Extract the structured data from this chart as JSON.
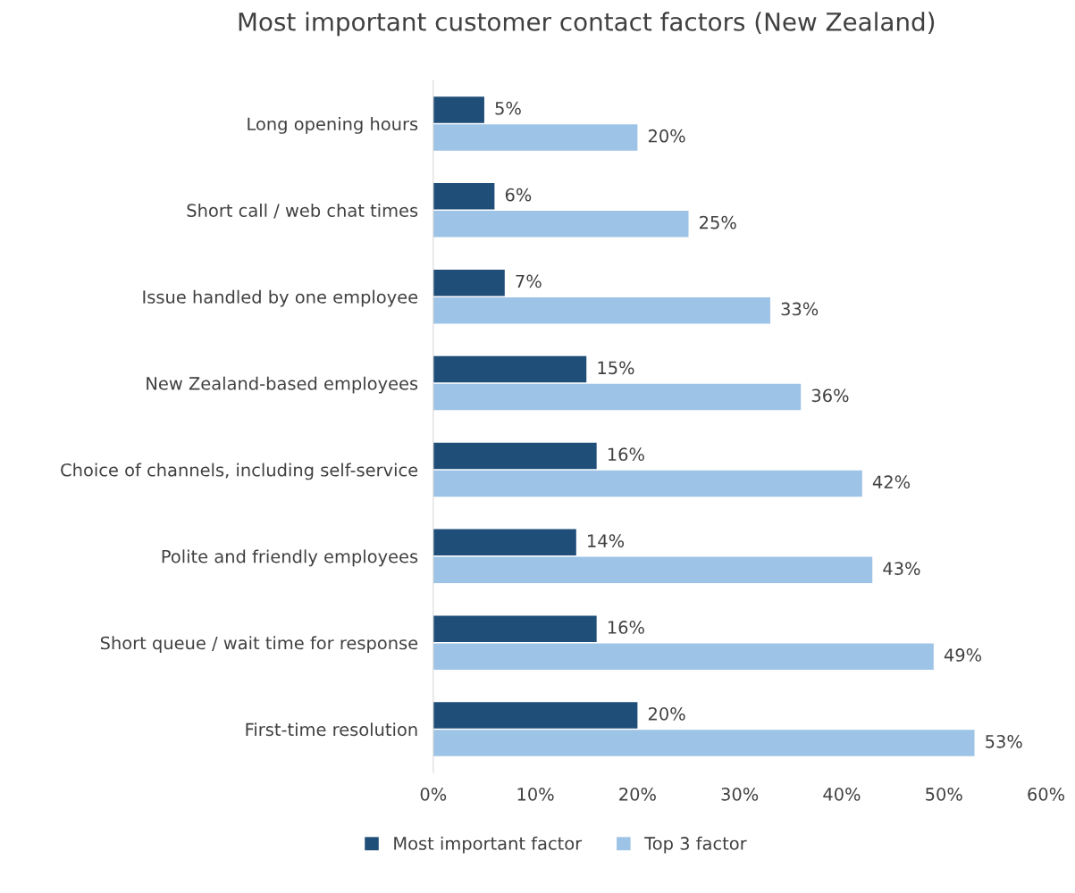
{
  "chart_data": {
    "type": "bar",
    "orientation": "horizontal",
    "title": "Most important customer contact factors (New Zealand)",
    "categories": [
      "Long opening hours",
      "Short call / web chat times",
      "Issue handled by one employee",
      "New Zealand-based employees",
      "Choice of channels, including self-service",
      "Polite and friendly employees",
      "Short queue / wait time for response",
      "First-time resolution"
    ],
    "series": [
      {
        "name": "Most important factor",
        "color": "#1f4e79",
        "values": [
          5,
          6,
          7,
          15,
          16,
          14,
          16,
          20
        ],
        "value_labels": [
          "5%",
          "6%",
          "7%",
          "15%",
          "16%",
          "14%",
          "16%",
          "20%"
        ]
      },
      {
        "name": "Top 3 factor",
        "color": "#9dc3e6",
        "values": [
          20,
          25,
          33,
          36,
          42,
          43,
          49,
          53
        ],
        "value_labels": [
          "20%",
          "25%",
          "33%",
          "36%",
          "42%",
          "43%",
          "49%",
          "53%"
        ]
      }
    ],
    "xlim": [
      0,
      60
    ],
    "xticks": [
      {
        "value": 0,
        "label": "0%"
      },
      {
        "value": 10,
        "label": "10%"
      },
      {
        "value": 20,
        "label": "20%"
      },
      {
        "value": 30,
        "label": "30%"
      },
      {
        "value": 40,
        "label": "40%"
      },
      {
        "value": 50,
        "label": "50%"
      },
      {
        "value": 60,
        "label": "60%"
      }
    ],
    "grid": false,
    "legend": "bottom"
  }
}
